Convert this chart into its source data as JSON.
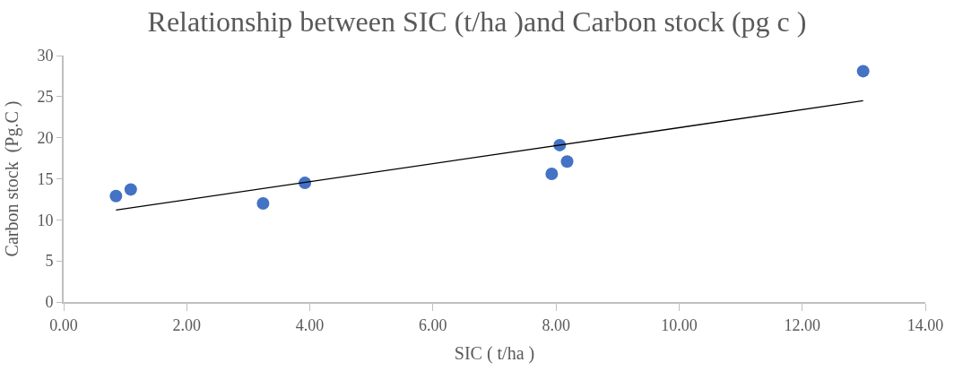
{
  "chart_data": {
    "type": "scatter",
    "title": "Relationship between SIC (t/ha )and Carbon stock (pg c )",
    "xlabel": "SIC ( t/ha )",
    "ylabel": "Carbon stock  (Pg.C )",
    "series": [
      {
        "color": "#4472c4",
        "x": [
          0.85,
          1.09,
          3.24,
          3.92,
          7.93,
          8.06,
          8.18,
          12.99
        ],
        "values": [
          12.9,
          13.7,
          12.0,
          14.5,
          15.6,
          19.1,
          17.1,
          28.1
        ],
        "marker": "circle"
      },
      {
        "type": "line",
        "color": "#000000",
        "x": [
          0.85,
          12.99
        ],
        "values": [
          11.2,
          24.5
        ],
        "marker": "none",
        "line_style": "solid"
      }
    ],
    "xlim": [
      0,
      14
    ],
    "xticks": [
      {
        "value": 0,
        "label": "0.00"
      },
      {
        "value": 2,
        "label": "2.00"
      },
      {
        "value": 4,
        "label": "4.00"
      },
      {
        "value": 6,
        "label": "6.00"
      },
      {
        "value": 8,
        "label": "8.00"
      },
      {
        "value": 10,
        "label": "10.00"
      },
      {
        "value": 12,
        "label": "12.00"
      },
      {
        "value": 14,
        "label": "14.00"
      }
    ],
    "ylim": [
      0,
      30
    ],
    "yticks": [
      0,
      5,
      10,
      15,
      20,
      25,
      30
    ]
  }
}
